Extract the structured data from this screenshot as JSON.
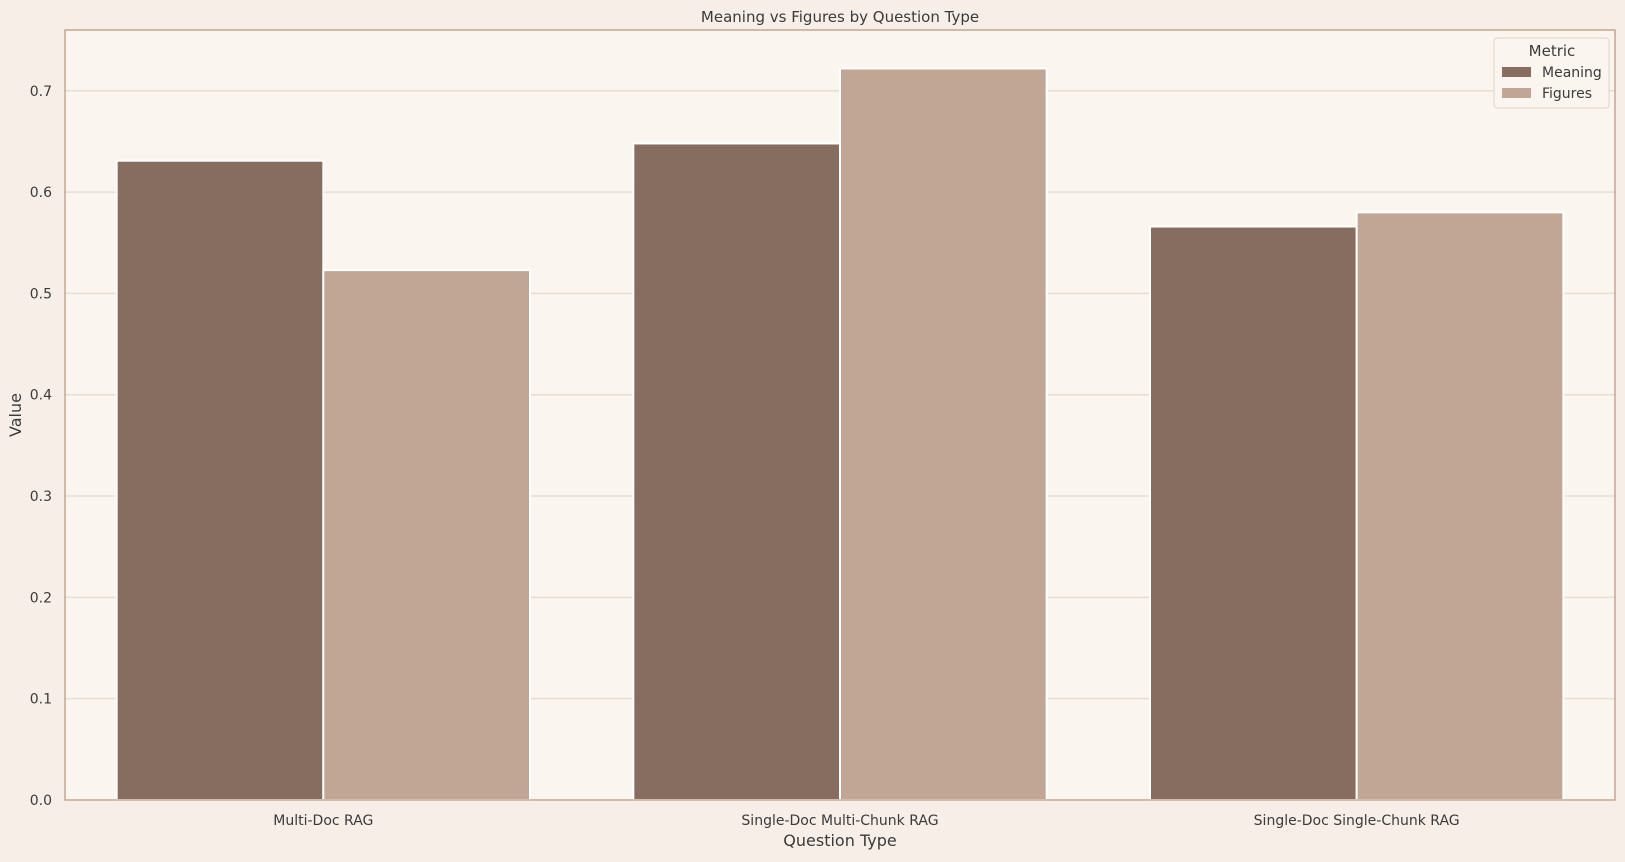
{
  "chart_data": {
    "type": "bar",
    "title": "Meaning vs Figures by Question Type",
    "xlabel": "Question Type",
    "ylabel": "Value",
    "categories": [
      "Multi-Doc RAG",
      "Single-Doc Multi-Chunk RAG",
      "Single-Doc Single-Chunk RAG"
    ],
    "series": [
      {
        "name": "Meaning",
        "values": [
          0.631,
          0.648,
          0.566
        ],
        "color": "#876d60"
      },
      {
        "name": "Figures",
        "values": [
          0.523,
          0.722,
          0.58
        ],
        "color": "#c1a695"
      }
    ],
    "ylim": [
      0,
      0.76
    ],
    "yticks": [
      "0.0",
      "0.1",
      "0.2",
      "0.3",
      "0.4",
      "0.5",
      "0.6",
      "0.7"
    ],
    "grid": "horizontal",
    "legend": {
      "title": "Metric",
      "placement": "top-right"
    },
    "colors": {
      "page_background": "#f6eee7",
      "plot_background": "#faf5ef",
      "frame": "#c4a692",
      "grid": "#e8ddd3"
    }
  }
}
